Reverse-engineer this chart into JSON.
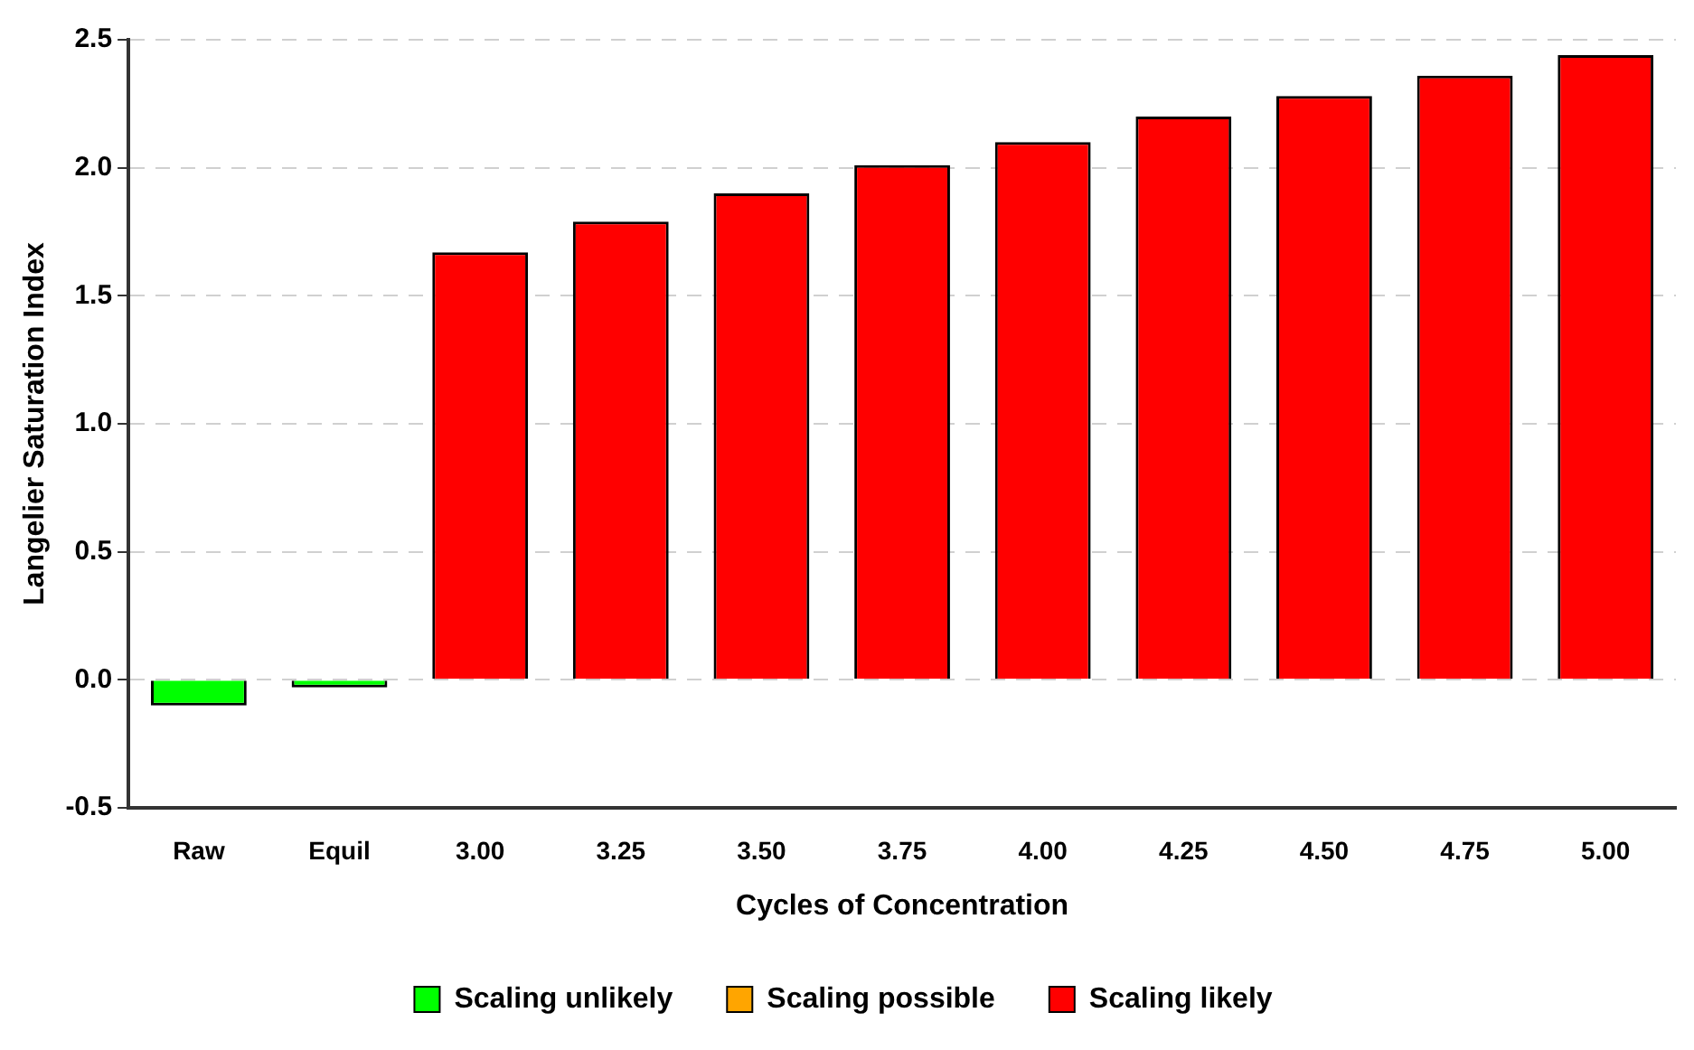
{
  "chart_data": {
    "type": "bar",
    "xlabel": "Cycles of Concentration",
    "ylabel": "Langelier Saturation Index",
    "categories": [
      "Raw",
      "Equil",
      "3.00",
      "3.25",
      "3.50",
      "3.75",
      "4.00",
      "4.25",
      "4.50",
      "4.75",
      "5.00"
    ],
    "stacked": true,
    "series": [
      {
        "name": "Scaling unlikely",
        "color": "#00ff00",
        "values": [
          -0.1,
          -0.03,
          null,
          null,
          null,
          null,
          null,
          null,
          null,
          null,
          null
        ]
      },
      {
        "name": "Scaling possible",
        "color": "#ffa500",
        "values": [
          null,
          null,
          null,
          null,
          null,
          null,
          null,
          null,
          null,
          null,
          null
        ]
      },
      {
        "name": "Scaling likely",
        "color": "#ff0000",
        "values": [
          null,
          null,
          1.67,
          1.79,
          1.9,
          2.01,
          2.1,
          2.2,
          2.28,
          2.36,
          2.44
        ]
      }
    ],
    "ylim": [
      -0.5,
      2.5
    ],
    "yticks": [
      {
        "value": -0.5,
        "label": "-0.5"
      },
      {
        "value": 0,
        "label": "0.0"
      },
      {
        "value": 0.5,
        "label": "0.5"
      },
      {
        "value": 1,
        "label": "1.0"
      },
      {
        "value": 1.5,
        "label": "1.5"
      },
      {
        "value": 2,
        "label": "2.0"
      },
      {
        "value": 2.5,
        "label": "2.5"
      }
    ],
    "grid": "y",
    "legend": "bottom"
  }
}
